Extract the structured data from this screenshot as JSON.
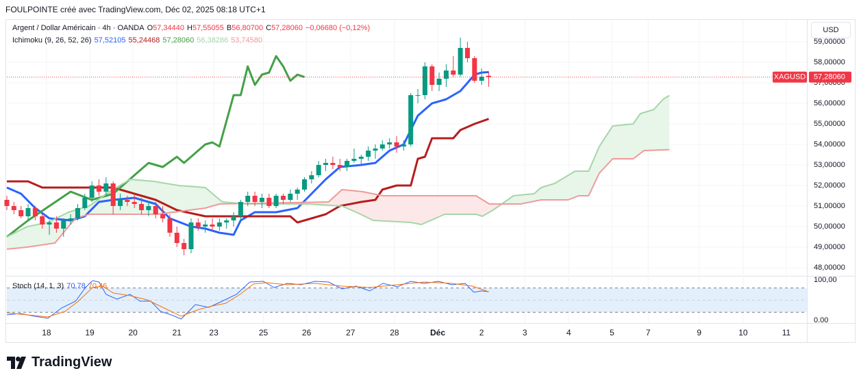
{
  "header": {
    "credit": "FOULPOINTE créé avec TradingView.com, Déc 02, 2025 08:18 UTC+1",
    "currency": "USD",
    "logo": "TradingView"
  },
  "chart_data": [
    {
      "type": "candlestick",
      "title": "Argent / Dollar Américain · 4h · OANDA",
      "ohlc_labels": [
        {
          "key": "O",
          "value": "57,34440"
        },
        {
          "key": "H",
          "value": "57,55055"
        },
        {
          "key": "B",
          "value": "56,80700"
        },
        {
          "key": "C",
          "value": "57,28060"
        }
      ],
      "change": "−0,06680 (−0,12%)",
      "indicator": "Ichimoku (9, 26, 52, 26)",
      "up_color": "#089981",
      "down_color": "#f23645",
      "open": [
        51.3,
        51.0,
        50.8,
        50.5,
        50.9,
        50.5,
        50.1,
        50.2,
        49.9,
        50.3,
        50.4,
        50.9,
        51.4,
        52.0,
        51.7,
        52.1,
        51.0,
        51.3,
        51.2,
        51.1,
        50.8,
        51.0,
        50.6,
        50.4,
        49.7,
        49.2,
        48.9,
        50.2,
        50.0,
        50.1,
        50.0,
        50.2,
        50.3,
        50.5,
        51.2,
        51.5,
        51.2,
        51.4,
        51.0,
        51.5,
        51.3,
        51.6,
        51.8,
        52.3,
        52.5,
        53.0,
        53.1,
        53.0,
        52.9,
        53.2,
        53.3,
        53.4,
        53.7,
        53.8,
        54.0,
        54.1,
        53.9,
        54.0,
        56.4,
        56.4,
        57.8,
        56.9,
        57.2,
        57.6,
        57.4,
        58.7,
        58.2,
        57.1,
        57.3444
      ],
      "high": [
        51.5,
        51.2,
        51.0,
        51.1,
        51.0,
        50.6,
        50.3,
        50.5,
        50.4,
        50.6,
        51.1,
        51.6,
        52.2,
        52.3,
        52.4,
        52.2,
        51.6,
        51.5,
        51.6,
        51.4,
        51.2,
        51.2,
        51.0,
        50.6,
        50.0,
        49.4,
        50.4,
        50.4,
        50.3,
        50.4,
        50.4,
        50.4,
        50.7,
        51.3,
        51.7,
        51.7,
        51.6,
        51.6,
        51.6,
        51.6,
        51.8,
        51.9,
        52.4,
        52.7,
        53.2,
        53.3,
        53.4,
        53.3,
        53.3,
        53.8,
        53.5,
        53.9,
        54.0,
        54.2,
        54.3,
        54.4,
        54.2,
        56.5,
        56.7,
        58.0,
        57.9,
        57.5,
        57.9,
        58.3,
        59.2,
        59.0,
        58.3,
        57.7,
        57.55055
      ],
      "low": [
        50.8,
        50.6,
        50.4,
        50.3,
        50.3,
        49.9,
        49.6,
        49.7,
        49.5,
        50.1,
        50.3,
        50.8,
        51.2,
        51.5,
        51.5,
        50.6,
        50.8,
        51.0,
        50.9,
        50.6,
        50.5,
        50.4,
        50.2,
        49.5,
        49.0,
        48.6,
        48.7,
        49.8,
        49.7,
        49.8,
        49.8,
        49.9,
        50.0,
        50.3,
        51.0,
        51.0,
        50.9,
        50.9,
        50.9,
        51.1,
        51.2,
        51.3,
        51.7,
        52.1,
        52.4,
        52.7,
        52.8,
        52.7,
        52.7,
        53.1,
        53.0,
        53.2,
        53.3,
        53.7,
        53.8,
        53.6,
        53.7,
        53.9,
        56.0,
        56.2,
        56.6,
        56.6,
        56.8,
        57.3,
        57.3,
        58.0,
        57.0,
        56.9,
        56.807
      ],
      "close": [
        51.0,
        50.8,
        50.5,
        50.9,
        50.5,
        50.1,
        50.2,
        49.9,
        50.3,
        50.4,
        50.9,
        51.4,
        52.0,
        51.7,
        52.1,
        51.0,
        51.3,
        51.2,
        51.1,
        50.8,
        51.0,
        50.6,
        50.4,
        49.7,
        49.2,
        48.9,
        50.2,
        50.0,
        50.1,
        50.0,
        50.2,
        50.3,
        50.5,
        51.2,
        51.5,
        51.2,
        51.4,
        51.0,
        51.5,
        51.3,
        51.6,
        51.8,
        52.3,
        52.5,
        53.0,
        53.1,
        53.0,
        52.9,
        53.2,
        53.3,
        53.4,
        53.7,
        53.8,
        54.0,
        54.1,
        53.9,
        54.0,
        56.4,
        56.4,
        57.8,
        56.9,
        57.2,
        57.6,
        57.4,
        58.7,
        58.2,
        57.1,
        57.3,
        57.2806
      ],
      "series": [
        {
          "color": "#2962ff",
          "legend_value": "57,52105",
          "x": [
            0,
            2,
            4,
            6,
            9,
            11,
            13,
            15,
            18,
            21,
            23,
            26,
            28,
            30,
            32,
            33,
            35,
            38,
            41,
            43,
            45,
            47,
            50,
            52,
            54,
            56,
            58,
            60,
            62,
            64,
            65,
            66,
            67,
            68
          ],
          "values": [
            51.9,
            51.6,
            50.9,
            50.4,
            50.3,
            50.5,
            51.2,
            51.3,
            51.4,
            51.1,
            50.4,
            50.0,
            49.9,
            49.7,
            49.6,
            50.3,
            50.7,
            50.7,
            50.9,
            51.6,
            52.3,
            52.9,
            53.0,
            53.1,
            53.7,
            54.0,
            55.4,
            56.0,
            56.2,
            56.6,
            57.0,
            57.4,
            57.5,
            57.52105
          ]
        },
        {
          "color": "#b71c1c",
          "legend_value": "55,24468",
          "x": [
            0,
            3,
            5,
            13,
            15,
            18,
            21,
            24,
            28,
            40,
            41,
            43,
            45,
            47,
            50,
            52,
            53,
            55,
            57,
            58,
            59,
            60,
            63,
            64,
            66,
            68
          ],
          "values": [
            52.2,
            52.2,
            51.9,
            51.9,
            51.9,
            51.6,
            51.3,
            50.8,
            50.5,
            50.5,
            50.2,
            50.4,
            50.6,
            51.0,
            51.2,
            51.3,
            51.8,
            52.0,
            52.0,
            53.3,
            53.4,
            54.3,
            54.3,
            54.7,
            55.0,
            55.24468
          ]
        },
        {
          "color": "#43a047",
          "legend_value": "57,28060",
          "x": [
            0,
            3,
            9,
            12,
            15,
            17,
            20,
            22,
            24,
            25,
            28,
            29,
            30,
            32,
            33,
            34,
            35,
            36,
            37,
            38,
            39,
            40,
            41,
            42
          ],
          "values": [
            49.5,
            50.3,
            51.7,
            51.3,
            51.6,
            52.2,
            53.1,
            52.9,
            53.4,
            53.1,
            54.0,
            54.1,
            53.9,
            56.4,
            56.4,
            57.8,
            56.9,
            57.4,
            57.5,
            58.3,
            57.8,
            57.1,
            57.4,
            57.2806
          ]
        },
        {
          "color": "#a5d6a7",
          "legend_value": "56,38286",
          "x": [
            0,
            2.9,
            5.8,
            8.7,
            11.6,
            14.5,
            17.4,
            20.8,
            24.2,
            28,
            30.4,
            33.8,
            42.5,
            47.3,
            49.3,
            51.7,
            57,
            58.5,
            61.8,
            66.2,
            67.1,
            68.6,
            71.5,
            74.4,
            75.4,
            77.3,
            80.2,
            82.1,
            83.6,
            85.5,
            88.4,
            89.4,
            91.3,
            92.6,
            93.5
          ],
          "values": [
            49.5,
            50.0,
            50.2,
            50.7,
            51.0,
            51.7,
            52.3,
            52.2,
            52.0,
            51.9,
            51.2,
            51.1,
            51.1,
            51.0,
            50.7,
            50.3,
            50.2,
            50.1,
            50.6,
            50.6,
            50.5,
            50.8,
            51.5,
            51.6,
            51.9,
            52.1,
            52.7,
            52.7,
            53.9,
            54.9,
            55.0,
            55.5,
            55.7,
            56.2,
            56.38286
          ]
        },
        {
          "color": "#ef9a9a",
          "legend_value": "53,74580",
          "x": [
            0,
            2.9,
            6.8,
            8.7,
            9.7,
            11.6,
            21.3,
            28,
            30,
            45.4,
            47.3,
            50.2,
            53.1,
            66.2,
            68.1,
            72.5,
            75.4,
            79.2,
            80.7,
            82.1,
            83.6,
            85.5,
            88.4,
            89.9,
            93.5
          ],
          "values": [
            48.9,
            49.0,
            49.2,
            50.0,
            50.4,
            50.6,
            50.6,
            50.9,
            51.1,
            51.2,
            51.8,
            51.7,
            51.5,
            51.5,
            51.1,
            51.1,
            51.3,
            51.3,
            51.5,
            51.5,
            52.6,
            53.3,
            53.3,
            53.7,
            53.7458
          ]
        }
      ],
      "cloud_colors": [
        "#e8f5e9",
        "#fce8e8"
      ],
      "price_tag": {
        "symbol": "XAGUSD",
        "price": {
          "value": 57.2806,
          "label": "57,28060"
        },
        "color": "#f23645"
      },
      "xlim": [
        0,
        112.9
      ],
      "xticks": [
        {
          "value": 5.6,
          "label": "18"
        },
        {
          "value": 11.7,
          "label": "19"
        },
        {
          "value": 17.8,
          "label": "20"
        },
        {
          "value": 24,
          "label": "21"
        },
        {
          "value": 29.2,
          "label": "23"
        },
        {
          "value": 36.2,
          "label": "25"
        },
        {
          "value": 42.3,
          "label": "26"
        },
        {
          "value": 48.5,
          "label": "27"
        },
        {
          "value": 54.7,
          "label": "28"
        },
        {
          "value": 60.8,
          "label": "Déc"
        },
        {
          "value": 67,
          "label": "2"
        },
        {
          "value": 73.1,
          "label": "3"
        },
        {
          "value": 79.3,
          "label": "4"
        },
        {
          "value": 85.4,
          "label": "5"
        },
        {
          "value": 90.5,
          "label": "7"
        },
        {
          "value": 97.7,
          "label": "9"
        },
        {
          "value": 103.9,
          "label": "10"
        },
        {
          "value": 110,
          "label": "11"
        }
      ],
      "ylim": [
        47.6,
        60
      ],
      "yticks": [
        {
          "value": 48,
          "label": "48,00000"
        },
        {
          "value": 49,
          "label": "49,00000"
        },
        {
          "value": 50,
          "label": "50,00000"
        },
        {
          "value": 51,
          "label": "51,00000"
        },
        {
          "value": 52,
          "label": "52,00000"
        },
        {
          "value": 53,
          "label": "53,00000"
        },
        {
          "value": 54,
          "label": "54,00000"
        },
        {
          "value": 55,
          "label": "55,00000"
        },
        {
          "value": 56,
          "label": "56,00000"
        },
        {
          "value": 57,
          "label": "57,00000"
        },
        {
          "value": 58,
          "label": "58,00000"
        },
        {
          "value": 59,
          "label": "59,00000"
        }
      ],
      "grid": true
    },
    {
      "type": "line",
      "title": "Stoch (14, 1, 3)",
      "series": [
        {
          "color": "#2962ff",
          "legend_value": "70,78",
          "x": [
            0,
            1.9,
            3.9,
            5.8,
            7.7,
            9.7,
            11.1,
            12.1,
            13,
            14,
            15.5,
            17.4,
            18.8,
            20.3,
            21.7,
            23.2,
            24.6,
            26.6,
            28.5,
            30.4,
            32.4,
            34.3,
            36.2,
            37.7,
            39.6,
            41.5,
            43.5,
            45.4,
            47.3,
            49.3,
            51.2,
            53.1,
            55.1,
            57,
            58.9,
            60.9,
            62.8,
            64.7,
            65.9,
            67,
            68
          ],
          "values": [
            13.6,
            16.9,
            10.2,
            5.1,
            30.5,
            47.5,
            81.4,
            98.3,
            94.9,
            64.4,
            52.5,
            64.4,
            47.5,
            47.5,
            22,
            13.6,
            3.4,
            39,
            32.2,
            47.5,
            64.4,
            94.9,
            96.6,
            81.4,
            91.5,
            88.1,
            96.6,
            94.9,
            78,
            84.7,
            72.9,
            91.5,
            83.1,
            96.6,
            91.5,
            96.6,
            88.1,
            91.5,
            69.5,
            72.9,
            70.78
          ]
        },
        {
          "color": "#ff6d00",
          "legend_value": "70,46",
          "x": [
            0,
            2.9,
            5.8,
            8.2,
            10.1,
            12.1,
            13.5,
            15,
            17.4,
            19.8,
            22.2,
            24.6,
            27.1,
            29,
            30.9,
            32.9,
            34.8,
            36.7,
            39.6,
            43.5,
            47.3,
            51.2,
            55.1,
            58.9,
            62.8,
            65.7,
            68
          ],
          "values": [
            18.6,
            13.6,
            8.5,
            22,
            47.5,
            81.4,
            84.7,
            67.8,
            61,
            50.8,
            30.5,
            10.2,
            27.1,
            35.6,
            42.4,
            64.4,
            89.8,
            93.2,
            88.1,
            91.5,
            84.7,
            81.4,
            88.1,
            94.9,
            91.5,
            84.7,
            70.46
          ]
        }
      ],
      "levels": [
        80,
        50,
        20
      ],
      "band_color": "#e3f0fc",
      "xlim": [
        0,
        112.9
      ],
      "ylim": [
        -6.8,
        108.5
      ],
      "yticks": [
        {
          "value": 100,
          "label": "100,00"
        },
        {
          "value": 0,
          "label": "0.00"
        }
      ]
    }
  ]
}
